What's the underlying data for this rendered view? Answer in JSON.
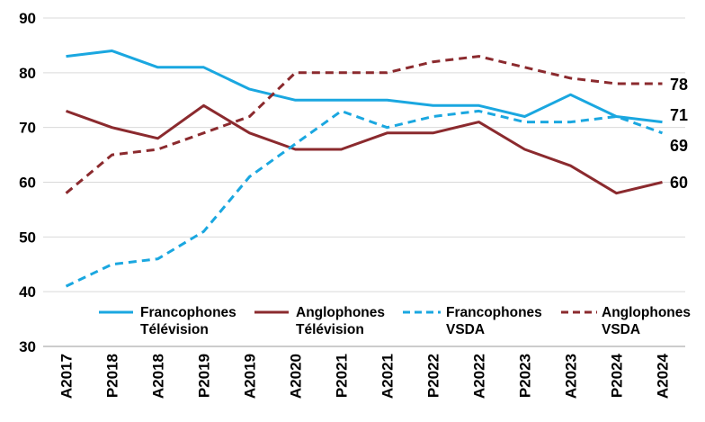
{
  "chart_data": {
    "type": "line",
    "categories": [
      "A2017",
      "P2018",
      "A2018",
      "P2019",
      "A2019",
      "A2020",
      "P2021",
      "A2021",
      "P2022",
      "A2022",
      "P2023",
      "A2023",
      "P2024",
      "A2024"
    ],
    "ylim": [
      30,
      90
    ],
    "yticks": [
      30,
      40,
      50,
      60,
      70,
      80,
      90
    ],
    "grid": "horizontal",
    "legend_position": "bottom",
    "series": [
      {
        "name_line1": "Francophones",
        "name_line2": "Télévision",
        "color": "#1aa7e0",
        "dash": "solid",
        "values": [
          83,
          84,
          81,
          81,
          77,
          75,
          75,
          75,
          74,
          74,
          72,
          76,
          72,
          71
        ]
      },
      {
        "name_line1": "Anglophones",
        "name_line2": "Télévision",
        "color": "#8b2a2e",
        "dash": "solid",
        "values": [
          73,
          70,
          68,
          74,
          69,
          66,
          66,
          69,
          69,
          71,
          66,
          63,
          58,
          60
        ]
      },
      {
        "name_line1": "Francophones",
        "name_line2": "VSDA",
        "color": "#1aa7e0",
        "dash": "dashed",
        "values": [
          41,
          45,
          46,
          51,
          61,
          67,
          73,
          70,
          72,
          73,
          71,
          71,
          72,
          69
        ]
      },
      {
        "name_line1": "Anglophones",
        "name_line2": "VSDA",
        "color": "#8b2a2e",
        "dash": "dashed",
        "values": [
          58,
          65,
          66,
          69,
          72,
          80,
          80,
          80,
          82,
          83,
          81,
          79,
          78,
          78
        ]
      }
    ],
    "end_labels": [
      "78",
      "71",
      "69",
      "60"
    ]
  }
}
